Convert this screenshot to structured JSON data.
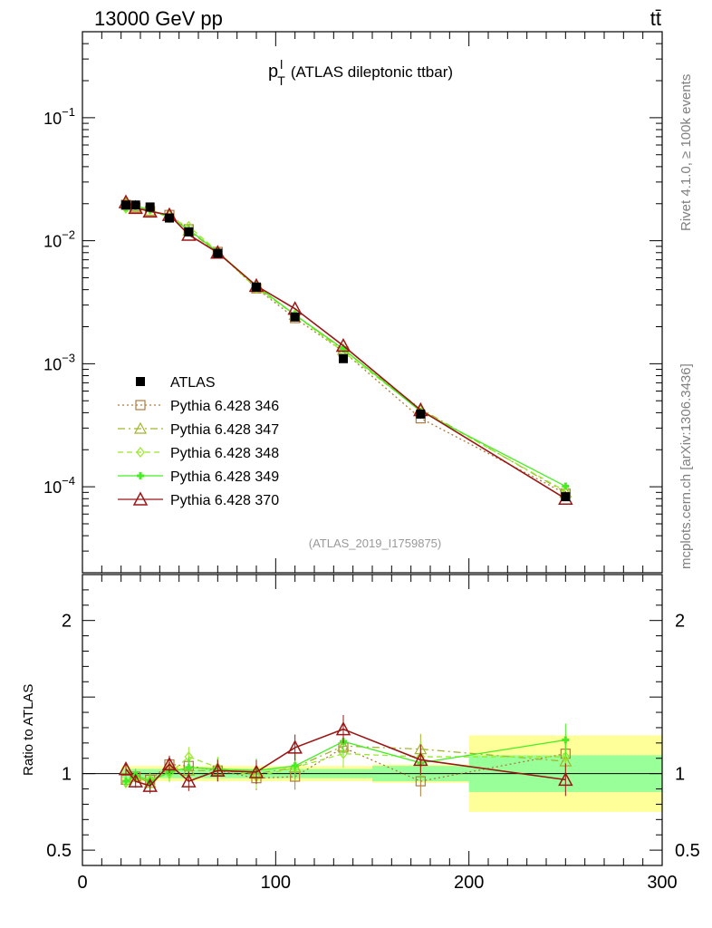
{
  "header": {
    "energy_label": "13000 GeV pp",
    "process_label": "tt̄"
  },
  "main_plot": {
    "title_symbol": "p",
    "title_sup": "l",
    "title_sub": "T",
    "title_rest": "(ATLAS dileptonic ttbar)",
    "analysis_id": "(ATLAS_2019_I1759875)",
    "y_tick_labels": [
      {
        "mant": "10",
        "exp": "−1",
        "value": 0.1
      },
      {
        "mant": "10",
        "exp": "−2",
        "value": 0.01
      },
      {
        "mant": "10",
        "exp": "−3",
        "value": 0.001
      },
      {
        "mant": "10",
        "exp": "−4",
        "value": 0.0001
      }
    ]
  },
  "ratio_plot": {
    "ylabel": "Ratio to ATLAS",
    "y_tick_labels": [
      {
        "label": "2",
        "value": 2
      },
      {
        "label": "1",
        "value": 1
      },
      {
        "label": "0.5",
        "value": 0.5
      }
    ]
  },
  "side_labels": {
    "rivet": "Rivet 4.1.0, ≥ 100k events",
    "source": "mcplots.cern.ch [arXiv:1306.3436]"
  },
  "x_tick_labels": [
    "0",
    "100",
    "200",
    "300"
  ],
  "chart_data": {
    "type": "line",
    "title": "p_T^l (ATLAS dileptonic ttbar)",
    "xlabel": "",
    "ylabel": "",
    "xlim": [
      0,
      300
    ],
    "ylim": [
      2e-05,
      0.5
    ],
    "y_scale": "log",
    "ratio_ylim": [
      0.4,
      2.3
    ],
    "legend_position": "bottom-left",
    "x": [
      22.5,
      27.5,
      35,
      45,
      55,
      70,
      90,
      110,
      135,
      175,
      250
    ],
    "bin_edges": [
      20,
      25,
      30,
      40,
      50,
      60,
      80,
      100,
      120,
      150,
      200,
      300
    ],
    "reference": {
      "name": "ATLAS",
      "values": [
        0.0195,
        0.0195,
        0.0188,
        0.0153,
        0.0118,
        0.0079,
        0.0042,
        0.0024,
        0.0011,
        0.00039,
        8.3e-05
      ],
      "ratio_band_inner": [
        0.03,
        0.03,
        0.03,
        0.03,
        0.03,
        0.03,
        0.03,
        0.03,
        0.03,
        0.05,
        0.12
      ],
      "ratio_band_outer": [
        0.05,
        0.05,
        0.05,
        0.05,
        0.05,
        0.05,
        0.05,
        0.05,
        0.05,
        0.06,
        0.25
      ]
    },
    "series": [
      {
        "name": "Pythia 6.428 346",
        "color": "#b07a3c",
        "dash": "2,3",
        "marker": "square",
        "values": [
          0.0196,
          0.0186,
          0.0174,
          0.0162,
          0.0124,
          0.0081,
          0.0041,
          0.00235,
          0.00126,
          0.00036,
          8.8e-05
        ],
        "ratio": [
          0.96,
          0.98,
          0.96,
          1.06,
          1.05,
          1.02,
          0.97,
          0.98,
          1.17,
          0.95,
          1.13
        ]
      },
      {
        "name": "Pythia 6.428 347",
        "color": "#a2b52c",
        "dash": "8,4,2,4",
        "marker": "triangle",
        "values": [
          0.0201,
          0.0191,
          0.0176,
          0.016,
          0.0121,
          0.008,
          0.0042,
          0.0025,
          0.0013,
          0.00043,
          9e-05
        ],
        "ratio": [
          1.03,
          0.98,
          0.94,
          1.04,
          1.02,
          1.02,
          1.0,
          1.04,
          1.18,
          1.16,
          1.08
        ]
      },
      {
        "name": "Pythia 6.428 348",
        "color": "#9ae82c",
        "dash": "6,4",
        "marker": "diamond",
        "values": [
          0.0183,
          0.0191,
          0.018,
          0.0153,
          0.0131,
          0.0082,
          0.0041,
          0.0025,
          0.00125,
          0.00042,
          9.2e-05
        ],
        "ratio": [
          0.94,
          0.98,
          0.96,
          1.0,
          1.11,
          1.04,
          0.98,
          1.04,
          1.13,
          1.11,
          1.11
        ]
      },
      {
        "name": "Pythia 6.428 349",
        "color": "#44ee22",
        "dash": "",
        "marker": "plus",
        "values": [
          0.0185,
          0.0193,
          0.0178,
          0.0155,
          0.0123,
          0.0081,
          0.0043,
          0.0025,
          0.00132,
          0.00041,
          0.000101
        ],
        "ratio": [
          0.95,
          0.99,
          0.95,
          1.01,
          1.04,
          1.03,
          1.02,
          1.05,
          1.21,
          1.07,
          1.22
        ]
      },
      {
        "name": "Pythia 6.428 370",
        "color": "#9b1616",
        "dash": "",
        "marker": "triangle-large",
        "values": [
          0.0206,
          0.0185,
          0.0173,
          0.0162,
          0.0112,
          0.008,
          0.0043,
          0.0028,
          0.0014,
          0.00042,
          8e-05
        ],
        "ratio": [
          1.03,
          0.95,
          0.92,
          1.06,
          0.95,
          1.02,
          1.01,
          1.17,
          1.29,
          1.09,
          0.96
        ]
      }
    ]
  }
}
